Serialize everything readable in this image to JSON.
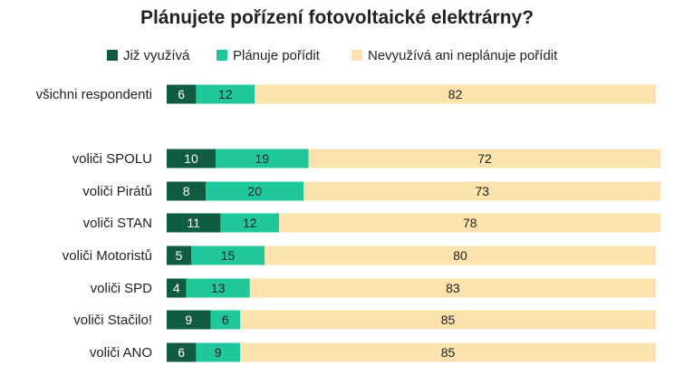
{
  "chart_data": {
    "type": "bar",
    "orientation": "horizontal",
    "stacked": true,
    "percent_stacked": true,
    "title": "Plánujete pořízení fotovoltaické elektrárny?",
    "categories": [
      "všichni respondenti",
      "voliči SPOLU",
      "voliči Pirátů",
      "voliči STAN",
      "voliči Motoristů",
      "voliči SPD",
      "voliči Stačilo!",
      "voliči ANO"
    ],
    "series": [
      {
        "name": "Již využívá",
        "color": "#0f5c43",
        "label_color": "#ffffff",
        "values": [
          6,
          10,
          8,
          11,
          5,
          4,
          9,
          6
        ]
      },
      {
        "name": "Plánuje pořídit",
        "color": "#1fc79a",
        "label_color": "#222222",
        "values": [
          12,
          19,
          20,
          12,
          15,
          13,
          6,
          9
        ]
      },
      {
        "name": "Nevyužívá ani neplánuje pořídit",
        "color": "#fce2ac",
        "label_color": "#222222",
        "values": [
          82,
          72,
          73,
          78,
          80,
          83,
          85,
          85
        ]
      }
    ],
    "xlim": [
      0,
      100
    ],
    "grid": false,
    "legend_position": "top"
  }
}
